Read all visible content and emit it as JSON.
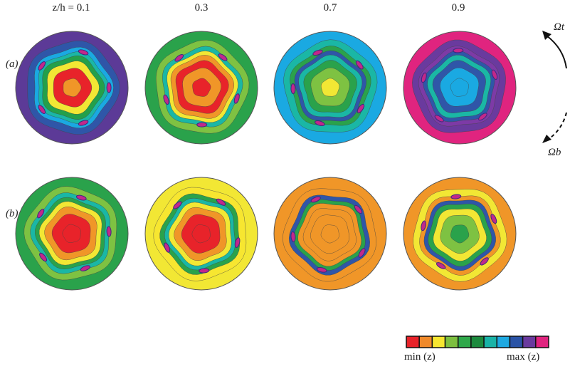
{
  "column_labels": [
    "z/h = 0.1",
    "0.3",
    "0.7",
    "0.9"
  ],
  "row_labels": [
    "(a)",
    "(b)"
  ],
  "rotation_labels": {
    "top": "Ωt",
    "bottom": "Ωb"
  },
  "colorbar": {
    "min_label": "min (z)",
    "max_label": "max (z)",
    "colors": [
      "#e8232a",
      "#f0892a",
      "#f7e630",
      "#7dbf3f",
      "#2fa84a",
      "#1c8a3d",
      "#19b3a7",
      "#1ea9e1",
      "#2a53a6",
      "#6a3a9e",
      "#e0247f"
    ]
  },
  "panels": [
    {
      "row": "a",
      "col": 1,
      "levels": [
        "#5c3a97",
        "#2f56a8",
        "#1aa9e2",
        "#1ab7a5",
        "#23a04a",
        "#f2e734",
        "#e8232a",
        "#f09628"
      ]
    },
    {
      "row": "a",
      "col": 2,
      "levels": [
        "#2aa24b",
        "#7ec242",
        "#1ab7a5",
        "#f2e734",
        "#f09628",
        "#e8232a",
        "#f09628",
        "#e8232a"
      ]
    },
    {
      "row": "a",
      "col": 3,
      "levels": [
        "#1aa9e2",
        "#1ab7a5",
        "#2aa24b",
        "#2f56a8",
        "#1ab7a5",
        "#2aa24b",
        "#7ec242",
        "#f2e734"
      ]
    },
    {
      "row": "a",
      "col": 4,
      "levels": [
        "#e0247f",
        "#6a3a9e",
        "#7d3aa6",
        "#2f56a8",
        "#1ab7a5",
        "#2f56a8",
        "#1aa9e2",
        "#1aa9e2"
      ]
    },
    {
      "row": "b",
      "col": 1,
      "levels": [
        "#2aa24b",
        "#7ec242",
        "#1ab7a5",
        "#2aa24b",
        "#f2e734",
        "#f09628",
        "#e8232a",
        "#e8232a"
      ]
    },
    {
      "row": "b",
      "col": 2,
      "levels": [
        "#f2e734",
        "#f7e630",
        "#2aa24b",
        "#1ab7a5",
        "#f2e734",
        "#f09628",
        "#e8232a",
        "#e8232a"
      ]
    },
    {
      "row": "b",
      "col": 3,
      "levels": [
        "#f09628",
        "#f09628",
        "#2f56a8",
        "#2aa24b",
        "#f09628",
        "#f09628",
        "#f09628",
        "#f09628"
      ]
    },
    {
      "row": "b",
      "col": 4,
      "levels": [
        "#f09628",
        "#f2e734",
        "#f09628",
        "#2f56a8",
        "#2aa24b",
        "#f2e734",
        "#7ec242",
        "#2aa24b"
      ]
    }
  ]
}
